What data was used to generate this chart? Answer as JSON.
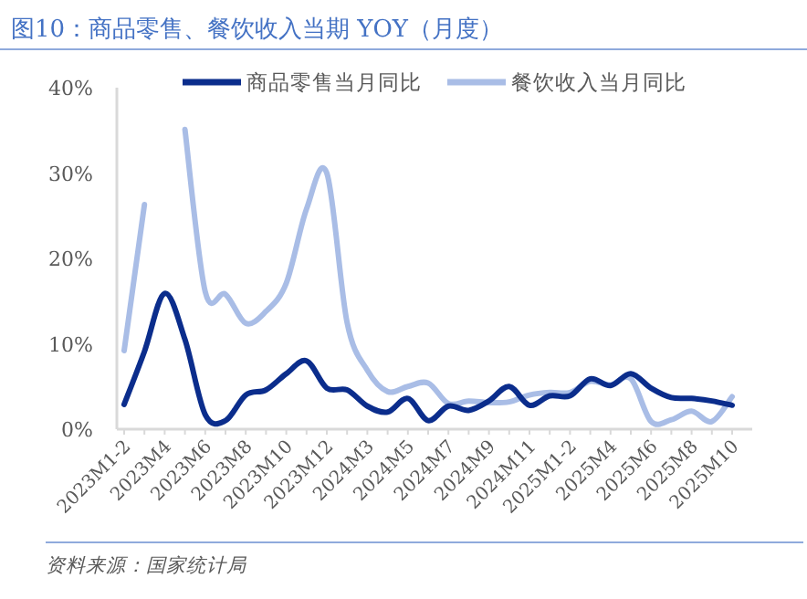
{
  "chart_data": {
    "type": "line",
    "title": "图10：商品零售、餐饮收入当期 YOY（月度）",
    "categories": [
      "2023M1-2",
      null,
      "2023M4",
      null,
      "2023M6",
      null,
      "2023M8",
      null,
      "2023M10",
      null,
      "2023M12",
      null,
      "2024M3",
      null,
      "2024M5",
      null,
      "2024M7",
      null,
      "2024M9",
      null,
      "2024M11",
      null,
      "2025M1-2",
      null,
      "2025M4",
      null,
      "2025M6",
      null,
      "2025M8",
      null,
      "2025M10"
    ],
    "series": [
      {
        "name": "商品零售当月同比",
        "color": "#0b2d8c",
        "values": [
          2.9,
          9.1,
          15.9,
          10.5,
          1.7,
          1.0,
          4.0,
          4.6,
          6.5,
          8.0,
          4.8,
          4.6,
          2.7,
          2.0,
          3.6,
          1.0,
          2.7,
          2.2,
          3.3,
          5.0,
          2.8,
          3.9,
          3.9,
          5.9,
          5.1,
          6.5,
          4.8,
          3.7,
          3.6,
          3.3,
          2.8
        ]
      },
      {
        "name": "餐饮收入当月同比",
        "color": "#a9bde6",
        "values": [
          9.2,
          26.3,
          null,
          35.1,
          16.1,
          15.8,
          12.4,
          13.8,
          17.1,
          25.8,
          30.0,
          12.5,
          6.9,
          4.4,
          5.0,
          5.4,
          3.0,
          3.3,
          3.1,
          3.2,
          4.0,
          4.3,
          4.3,
          5.6,
          5.2,
          5.9,
          0.9,
          1.1,
          2.1,
          0.9,
          3.8
        ]
      }
    ],
    "ylim": [
      0,
      40
    ],
    "yticks": [
      {
        "value": 0,
        "label": "0%"
      },
      {
        "value": 10,
        "label": "10%"
      },
      {
        "value": 20,
        "label": "20%"
      },
      {
        "value": 30,
        "label": "30%"
      },
      {
        "value": 40,
        "label": "40%"
      }
    ],
    "grid": false,
    "legend": "top",
    "annotations": [
      "资料来源：国家统计局"
    ]
  }
}
